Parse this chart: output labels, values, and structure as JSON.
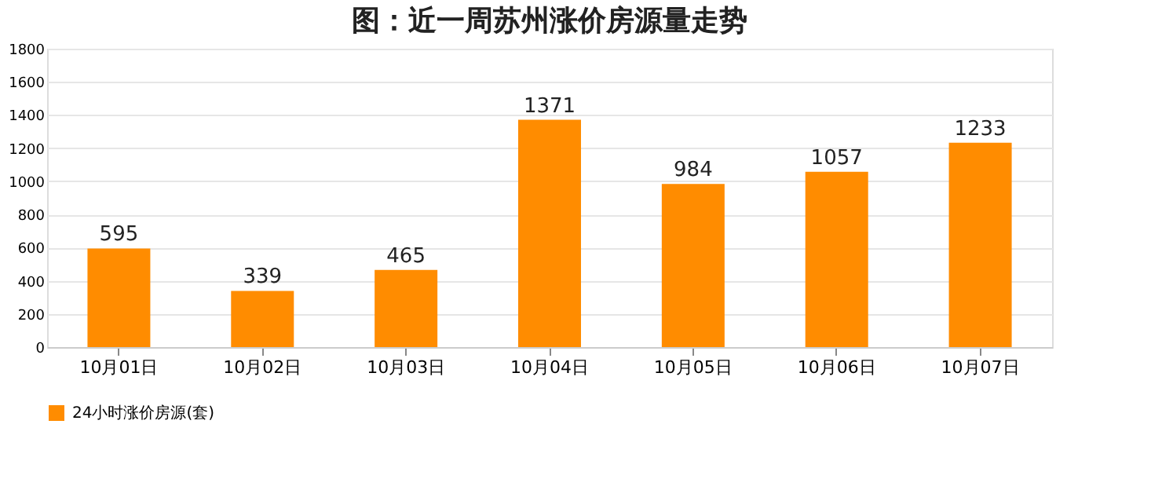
{
  "chart_data": {
    "type": "bar",
    "title": "图：近一周苏州涨价房源量走势",
    "categories": [
      "10月01日",
      "10月02日",
      "10月03日",
      "10月04日",
      "10月05日",
      "10月06日",
      "10月07日"
    ],
    "series": [
      {
        "name": "24小时涨价房源(套)",
        "color": "#ff8c00",
        "values": [
          595,
          339,
          465,
          1371,
          984,
          1057,
          1233
        ]
      }
    ],
    "ylim": [
      0,
      1800
    ],
    "yticks": [
      0,
      200,
      400,
      600,
      800,
      1000,
      1200,
      1400,
      1600,
      1800
    ],
    "grid": "y",
    "legend": "bottom",
    "data_labels": true
  }
}
